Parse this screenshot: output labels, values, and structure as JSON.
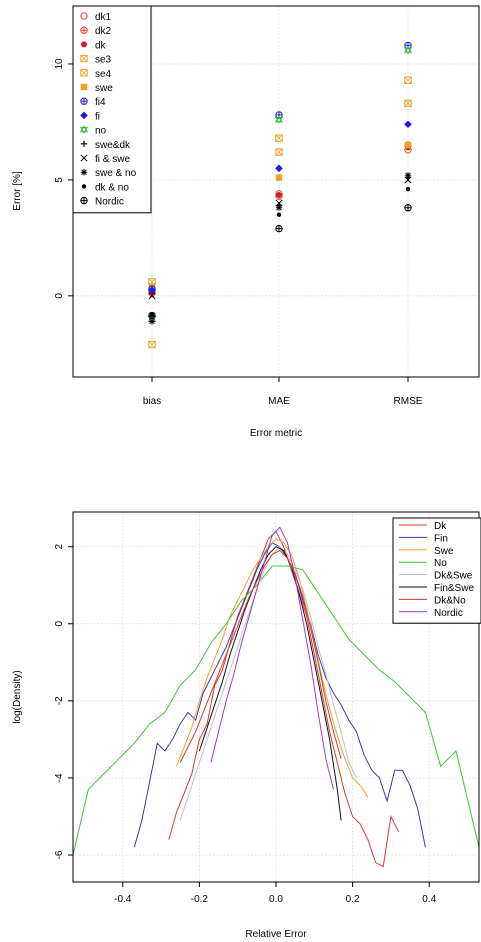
{
  "chart_data": [
    {
      "type": "scatter",
      "xlabel": "Error metric",
      "ylabel": "Error [%]",
      "categories": [
        "bias",
        "MAE",
        "RMSE"
      ],
      "ylim": [
        -3.5,
        12.5
      ],
      "yticks": [
        0,
        5,
        10
      ],
      "grid": true,
      "legend_position": "top-left",
      "series": [
        {
          "name": "dk1",
          "marker": "circle-open",
          "color": "#e8473c",
          "values": [
            0.2,
            4.4,
            6.3
          ]
        },
        {
          "name": "dk2",
          "marker": "circle-plus",
          "color": "#e8473c",
          "values": [
            0.1,
            4.3,
            6.5
          ]
        },
        {
          "name": "dk",
          "marker": "dot",
          "color": "#cc2222",
          "values": [
            0.15,
            4.35,
            6.4
          ]
        },
        {
          "name": "se3",
          "marker": "square-x",
          "color": "#f0a020",
          "values": [
            0.6,
            6.8,
            9.3
          ]
        },
        {
          "name": "se4",
          "marker": "square-x",
          "color": "#f0a020",
          "values": [
            -2.1,
            6.2,
            8.3
          ]
        },
        {
          "name": "swe",
          "marker": "square",
          "color": "#f0a020",
          "values": [
            0.4,
            5.1,
            6.5
          ]
        },
        {
          "name": "fi4",
          "marker": "circle-plus",
          "color": "#2222cc",
          "values": [
            0.3,
            7.8,
            10.8
          ]
        },
        {
          "name": "fi",
          "marker": "diamond",
          "color": "#1a1aee",
          "values": [
            0.25,
            5.5,
            7.4
          ]
        },
        {
          "name": "no",
          "marker": "triangle-star",
          "color": "#33bb33",
          "values": [
            -1.0,
            7.6,
            10.6
          ]
        },
        {
          "name": "swe&dk",
          "marker": "plus",
          "color": "#000000",
          "values": [
            -0.9,
            3.9,
            5.1
          ]
        },
        {
          "name": "fi & swe",
          "marker": "cross",
          "color": "#000000",
          "values": [
            0.0,
            4.0,
            5.0
          ]
        },
        {
          "name": "swe & no",
          "marker": "asterisk",
          "color": "#000000",
          "values": [
            -1.1,
            3.8,
            5.2
          ]
        },
        {
          "name": "dk & no",
          "marker": "dot-small",
          "color": "#000000",
          "values": [
            -0.8,
            3.5,
            4.6
          ]
        },
        {
          "name": "Nordic",
          "marker": "circle-plus",
          "color": "#000000",
          "values": [
            -0.85,
            2.9,
            3.8
          ]
        }
      ]
    },
    {
      "type": "line",
      "xlabel": "Relative Error",
      "ylabel": "log(Density)",
      "xlim": [
        -0.53,
        0.53
      ],
      "ylim": [
        -6.7,
        2.9
      ],
      "xticks": [
        -0.4,
        -0.2,
        0.0,
        0.2,
        0.4
      ],
      "yticks": [
        -6,
        -4,
        -2,
        0,
        2
      ],
      "grid": true,
      "legend_position": "top-right",
      "series": [
        {
          "name": "Dk",
          "color": "#d83a2e",
          "x": [
            -0.28,
            -0.26,
            -0.24,
            -0.22,
            -0.2,
            -0.18,
            -0.16,
            -0.14,
            -0.12,
            -0.1,
            -0.08,
            -0.06,
            -0.04,
            -0.02,
            0.0,
            0.02,
            0.04,
            0.06,
            0.08,
            0.1,
            0.12,
            0.14,
            0.16,
            0.18,
            0.2,
            0.22,
            0.24,
            0.26,
            0.28,
            0.3,
            0.32
          ],
          "y": [
            -5.6,
            -4.9,
            -4.4,
            -3.9,
            -3.0,
            -2.6,
            -1.6,
            -1.2,
            -0.5,
            0.2,
            0.7,
            1.2,
            1.7,
            2.2,
            2.4,
            2.0,
            1.4,
            0.8,
            0.2,
            -0.8,
            -1.8,
            -2.8,
            -3.6,
            -4.4,
            -5.0,
            -5.2,
            -5.6,
            -6.2,
            -6.3,
            -5.0,
            -5.4
          ]
        },
        {
          "name": "Fin",
          "color": "#3a3ab4",
          "x": [
            -0.37,
            -0.35,
            -0.33,
            -0.31,
            -0.29,
            -0.27,
            -0.25,
            -0.23,
            -0.21,
            -0.19,
            -0.17,
            -0.15,
            -0.13,
            -0.11,
            -0.09,
            -0.07,
            -0.05,
            -0.03,
            -0.01,
            0.01,
            0.03,
            0.05,
            0.07,
            0.09,
            0.11,
            0.13,
            0.15,
            0.17,
            0.19,
            0.21,
            0.23,
            0.25,
            0.27,
            0.29,
            0.31,
            0.33,
            0.35,
            0.37,
            0.39
          ],
          "y": [
            -5.8,
            -5.1,
            -4.1,
            -3.1,
            -3.3,
            -3.0,
            -2.6,
            -2.3,
            -2.5,
            -1.8,
            -1.4,
            -1.0,
            -0.6,
            -0.1,
            0.4,
            0.9,
            1.4,
            1.8,
            2.1,
            2.0,
            1.7,
            1.3,
            0.6,
            0.0,
            -0.8,
            -1.4,
            -1.8,
            -2.1,
            -2.5,
            -2.8,
            -3.4,
            -3.8,
            -4.0,
            -4.6,
            -3.8,
            -3.8,
            -4.2,
            -4.8,
            -5.8
          ]
        },
        {
          "name": "Swe",
          "color": "#f2a32a",
          "x": [
            -0.26,
            -0.24,
            -0.22,
            -0.2,
            -0.18,
            -0.16,
            -0.14,
            -0.12,
            -0.1,
            -0.08,
            -0.06,
            -0.04,
            -0.02,
            0.0,
            0.02,
            0.04,
            0.06,
            0.08,
            0.1,
            0.12,
            0.14,
            0.16,
            0.18,
            0.2,
            0.22,
            0.24
          ],
          "y": [
            -3.7,
            -3.2,
            -2.7,
            -2.0,
            -1.4,
            -0.9,
            -0.4,
            0.2,
            0.6,
            1.0,
            1.4,
            1.7,
            2.0,
            2.2,
            2.1,
            1.8,
            1.2,
            0.4,
            -0.5,
            -1.4,
            -2.2,
            -2.9,
            -3.5,
            -4.0,
            -4.2,
            -4.5
          ]
        },
        {
          "name": "No",
          "color": "#38c838",
          "x": [
            -0.53,
            -0.49,
            -0.45,
            -0.41,
            -0.37,
            -0.33,
            -0.29,
            -0.25,
            -0.21,
            -0.17,
            -0.13,
            -0.09,
            -0.05,
            -0.01,
            0.03,
            0.07,
            0.11,
            0.15,
            0.19,
            0.23,
            0.27,
            0.31,
            0.35,
            0.39,
            0.43,
            0.47,
            0.53
          ],
          "y": [
            -6.0,
            -4.3,
            -3.9,
            -3.5,
            -3.1,
            -2.6,
            -2.3,
            -1.6,
            -1.2,
            -0.5,
            0.0,
            0.6,
            1.0,
            1.5,
            1.5,
            1.4,
            0.8,
            0.2,
            -0.4,
            -0.8,
            -1.2,
            -1.5,
            -1.9,
            -2.3,
            -3.7,
            -3.3,
            -5.8
          ]
        },
        {
          "name": "Dk&Swe",
          "color": "#c0c0c0",
          "x": [
            -0.25,
            -0.23,
            -0.21,
            -0.19,
            -0.17,
            -0.15,
            -0.13,
            -0.11,
            -0.09,
            -0.07,
            -0.05,
            -0.03,
            -0.01,
            0.01,
            0.03,
            0.05,
            0.07,
            0.09,
            0.11,
            0.13,
            0.15,
            0.17,
            0.19,
            0.21
          ],
          "y": [
            -5.1,
            -4.5,
            -3.9,
            -3.3,
            -2.7,
            -2.1,
            -1.5,
            -0.9,
            -0.3,
            0.3,
            0.9,
            1.4,
            1.8,
            2.0,
            1.8,
            1.4,
            0.9,
            0.2,
            -0.6,
            -1.3,
            -2.1,
            -2.8,
            -3.6,
            -4.0
          ]
        },
        {
          "name": "Fin&Swe",
          "color": "#111111",
          "x": [
            -0.2,
            -0.18,
            -0.16,
            -0.14,
            -0.12,
            -0.1,
            -0.08,
            -0.06,
            -0.04,
            -0.02,
            0.0,
            0.02,
            0.04,
            0.06,
            0.08,
            0.1,
            0.12,
            0.14,
            0.16,
            0.17
          ],
          "y": [
            -3.3,
            -2.7,
            -2.1,
            -1.5,
            -0.8,
            -0.2,
            0.4,
            0.9,
            1.4,
            1.8,
            2.0,
            1.9,
            1.5,
            0.8,
            0.0,
            -1.0,
            -2.0,
            -3.0,
            -4.3,
            -5.1
          ]
        },
        {
          "name": "Dk&No",
          "color": "#d83a2e",
          "x": [
            -0.25,
            -0.23,
            -0.21,
            -0.19,
            -0.17,
            -0.15,
            -0.13,
            -0.11,
            -0.09,
            -0.07,
            -0.05,
            -0.03,
            -0.01,
            0.01,
            0.03,
            0.05,
            0.07,
            0.09,
            0.11,
            0.13,
            0.15,
            0.17
          ],
          "y": [
            -3.6,
            -3.2,
            -2.8,
            -2.3,
            -1.8,
            -1.3,
            -0.8,
            -0.3,
            0.2,
            0.7,
            1.1,
            1.5,
            1.8,
            1.9,
            1.7,
            1.3,
            0.7,
            -0.1,
            -1.0,
            -2.0,
            -2.8,
            -3.5
          ]
        },
        {
          "name": "Nordic",
          "color": "#a43ad0",
          "x": [
            -0.17,
            -0.15,
            -0.13,
            -0.11,
            -0.09,
            -0.07,
            -0.05,
            -0.03,
            -0.01,
            0.01,
            0.03,
            0.05,
            0.07,
            0.09,
            0.11,
            0.13,
            0.15
          ],
          "y": [
            -3.6,
            -2.8,
            -2.0,
            -1.3,
            -0.5,
            0.2,
            0.9,
            1.6,
            2.3,
            2.5,
            2.1,
            1.2,
            0.1,
            -1.0,
            -2.3,
            -3.5,
            -4.3
          ]
        }
      ]
    }
  ]
}
